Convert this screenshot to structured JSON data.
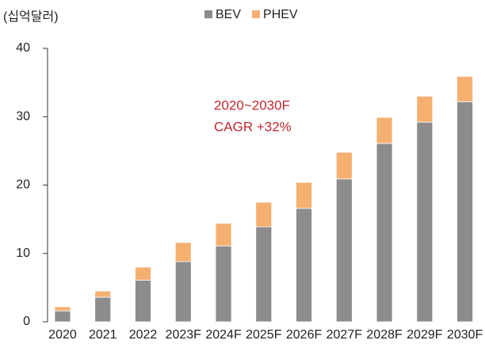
{
  "chart_data": {
    "type": "stacked_bar",
    "y_label": "(십억달러)",
    "annotations": [
      "2020~2030F",
      "CAGR +32%"
    ],
    "categories": [
      "2020",
      "2021",
      "2022",
      "2023F",
      "2024F",
      "2025F",
      "2026F",
      "2027F",
      "2028F",
      "2029F",
      "2030F"
    ],
    "series": [
      {
        "name": "BEV",
        "color": "#8c8c8c",
        "values": [
          1.6,
          3.6,
          6.1,
          8.8,
          11.1,
          13.9,
          16.6,
          20.9,
          26.1,
          29.2,
          32.2
        ]
      },
      {
        "name": "PHEV",
        "color": "#f5b070",
        "values": [
          0.6,
          0.9,
          1.9,
          2.8,
          3.3,
          3.6,
          3.8,
          3.9,
          3.8,
          3.8,
          3.7
        ]
      }
    ],
    "ylim": [
      0,
      40
    ],
    "yticks": [
      0,
      10,
      20,
      30,
      40
    ],
    "grid": false,
    "legend": "top"
  }
}
